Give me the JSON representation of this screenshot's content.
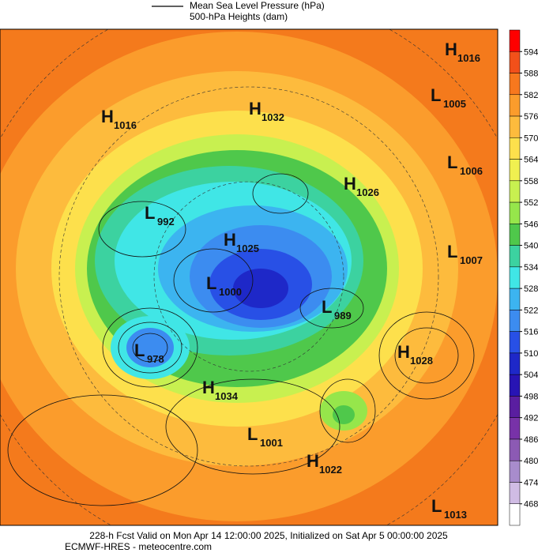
{
  "legend": {
    "pressure": "Mean Sea Level Pressure (hPa)",
    "heights": "500-hPa Heights (dam)"
  },
  "centers": [
    {
      "kind": "H",
      "pressure": 1016
    },
    {
      "kind": "L",
      "pressure": 1005
    },
    {
      "kind": "H",
      "pressure": 1032
    },
    {
      "kind": "H",
      "pressure": 1016
    },
    {
      "kind": "L",
      "pressure": 1006
    },
    {
      "kind": "H",
      "pressure": 1026
    },
    {
      "kind": "L",
      "pressure": 992
    },
    {
      "kind": "H",
      "pressure": 1025
    },
    {
      "kind": "L",
      "pressure": 1007
    },
    {
      "kind": "L",
      "pressure": 1000
    },
    {
      "kind": "L",
      "pressure": 989
    },
    {
      "kind": "L",
      "pressure": 978
    },
    {
      "kind": "H",
      "pressure": 1028
    },
    {
      "kind": "H",
      "pressure": 1034
    },
    {
      "kind": "L",
      "pressure": 1001
    },
    {
      "kind": "H",
      "pressure": 1022
    },
    {
      "kind": "L",
      "pressure": 1013
    }
  ],
  "colorbar": {
    "levels": [
      594,
      588,
      582,
      576,
      570,
      564,
      558,
      552,
      546,
      540,
      534,
      528,
      522,
      516,
      510,
      504,
      498,
      492,
      486,
      480,
      474,
      468
    ],
    "colors": [
      "#ff0000",
      "#f2501a",
      "#f7781e",
      "#fb9c2c",
      "#fdbb3d",
      "#fde04c",
      "#f0f050",
      "#c8f050",
      "#96e64b",
      "#4fc84b",
      "#3cd2a0",
      "#40e6e6",
      "#3cb4f0",
      "#3c8cf0",
      "#2850e6",
      "#1e28c8",
      "#2814b4",
      "#5a1ea0",
      "#7832a8",
      "#8c5ab4",
      "#a88ccc",
      "#d0bce4",
      "#ffffff"
    ]
  },
  "footer": {
    "line1": "228-h Fcst Valid on Mon Apr 14 12:00:00 2025, Initialized on Sat Apr  5 00:00:00 2025",
    "line2": "ECMWF-HRES  - meteocentre.com"
  }
}
